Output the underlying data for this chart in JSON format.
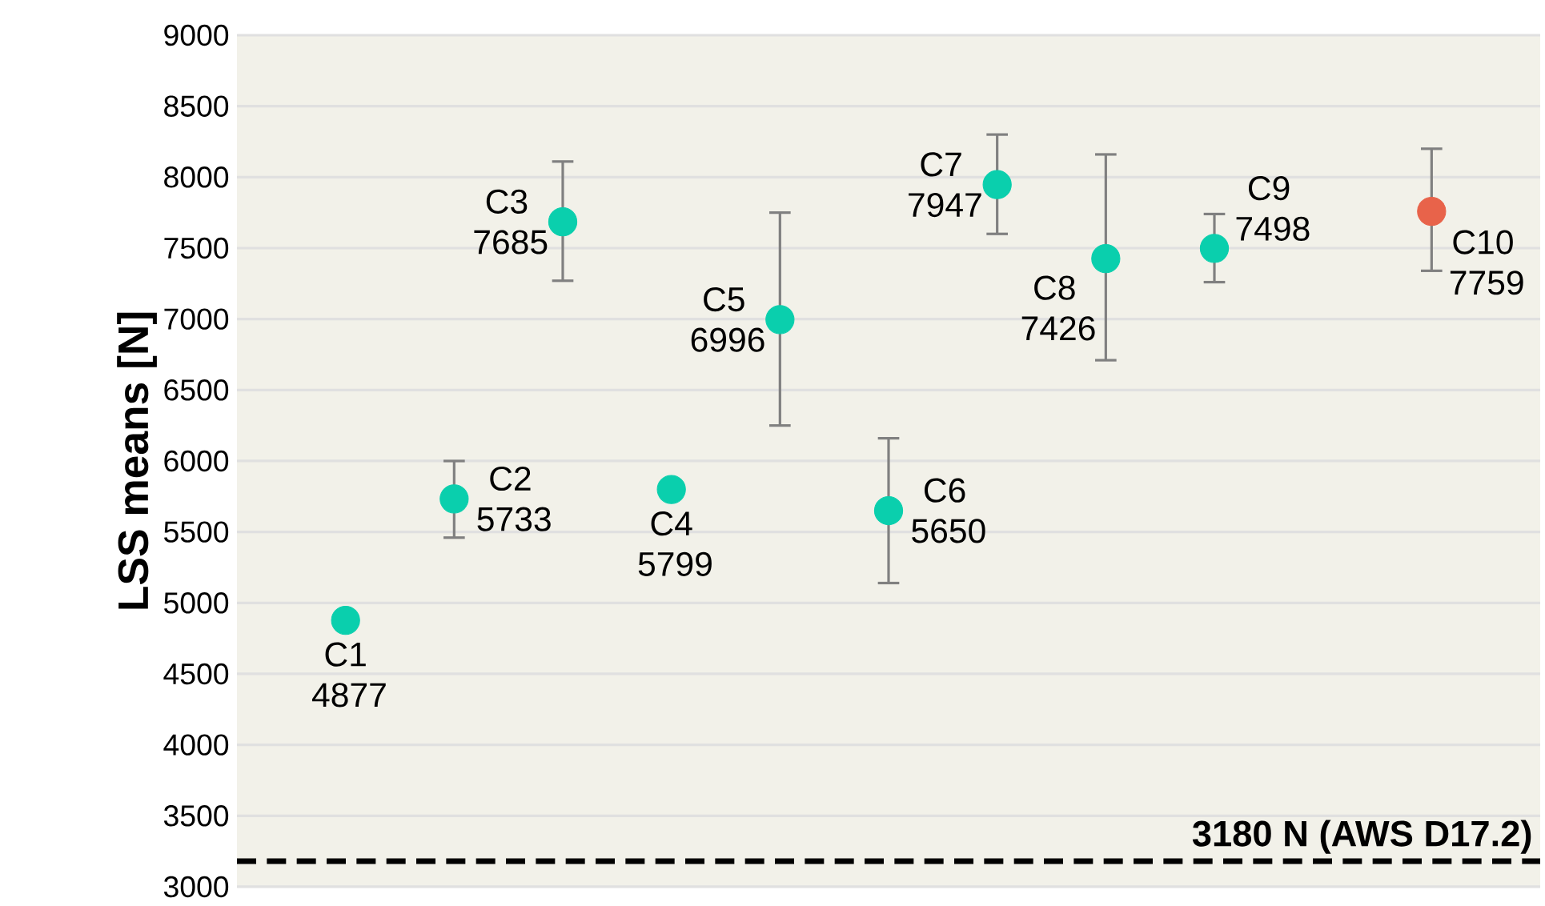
{
  "chart_data": {
    "type": "scatter",
    "ylabel": "LSS means [N]",
    "categories": [
      null,
      null,
      null,
      null,
      null,
      null,
      null,
      null,
      null,
      null,
      null
    ],
    "ylim": [
      3000,
      9000
    ],
    "yticks": [
      3000,
      3500,
      4000,
      4500,
      5000,
      5500,
      6000,
      6500,
      7000,
      7500,
      8000,
      8500,
      9000
    ],
    "tick_labels": "y",
    "grid": "y",
    "marker": "circle",
    "values": [
      4877,
      5733,
      7685,
      5799,
      6996,
      5650,
      7947,
      7426,
      7498,
      null,
      7759
    ],
    "colors": [
      "#0acfad",
      "#0acfad",
      "#0acfad",
      "#0acfad",
      "#0acfad",
      "#0acfad",
      "#0acfad",
      "#0acfad",
      "#0acfad",
      "#0acfad",
      "#e8634a"
    ],
    "errors": [
      null,
      [
        5460,
        6000
      ],
      [
        7270,
        8110
      ],
      null,
      [
        6250,
        7750
      ],
      [
        5140,
        6160
      ],
      [
        7600,
        8300
      ],
      [
        6710,
        8160
      ],
      [
        7260,
        7740
      ],
      null,
      [
        7340,
        8200
      ]
    ],
    "value_labels": [
      "C1 4877",
      "C2 5733",
      "C3 7685",
      "C4 5799",
      "C5 6996",
      "C6 5650",
      "C7 7947",
      "C8 7426",
      "C9 7498",
      null,
      "C10 7759"
    ],
    "ref_lines": [
      {
        "axis": "y",
        "value": 3180,
        "label": "3180 N (AWS D17.2)",
        "color": "#000000",
        "line_style": "dashed"
      }
    ]
  }
}
